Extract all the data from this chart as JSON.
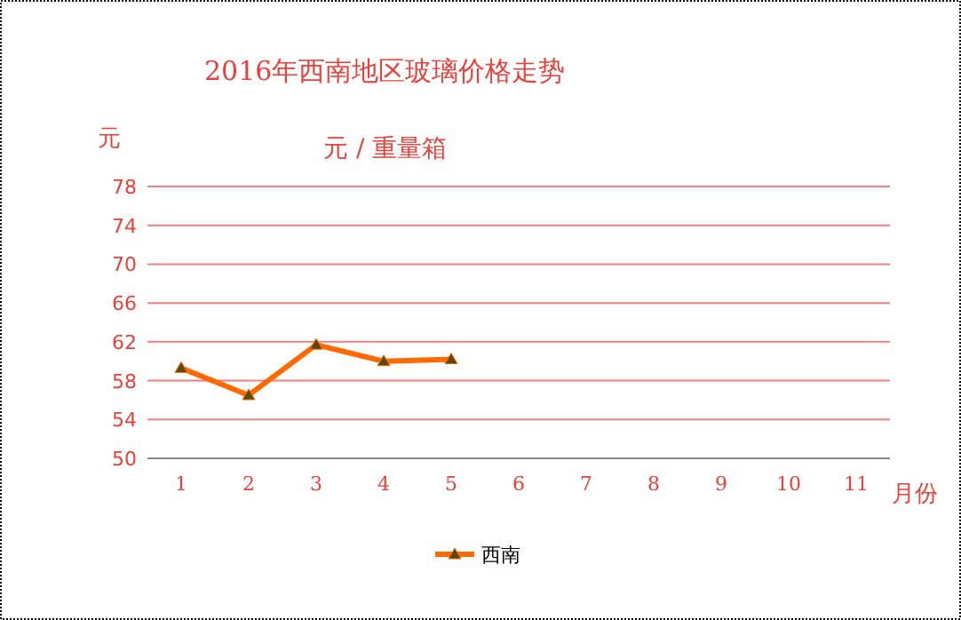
{
  "chart_data": {
    "type": "line",
    "title": "2016年西南地区玻璃价格走势",
    "subtitle": "元 / 重量箱",
    "ylabel": "元",
    "xlabel": "月份",
    "categories": [
      "1",
      "2",
      "3",
      "4",
      "5",
      "6",
      "7",
      "8",
      "9",
      "10",
      "11"
    ],
    "series": [
      {
        "name": "西南",
        "color": "#ff6a00",
        "values": [
          59.3,
          56.5,
          61.7,
          60.0,
          60.2,
          null,
          null,
          null,
          null,
          null,
          null
        ]
      }
    ],
    "ylim": [
      50,
      78
    ],
    "yticks": [
      50,
      54,
      58,
      62,
      66,
      70,
      74,
      78
    ],
    "grid": "y",
    "legend": "bottom",
    "marker": "triangle",
    "line_style": "solid"
  }
}
